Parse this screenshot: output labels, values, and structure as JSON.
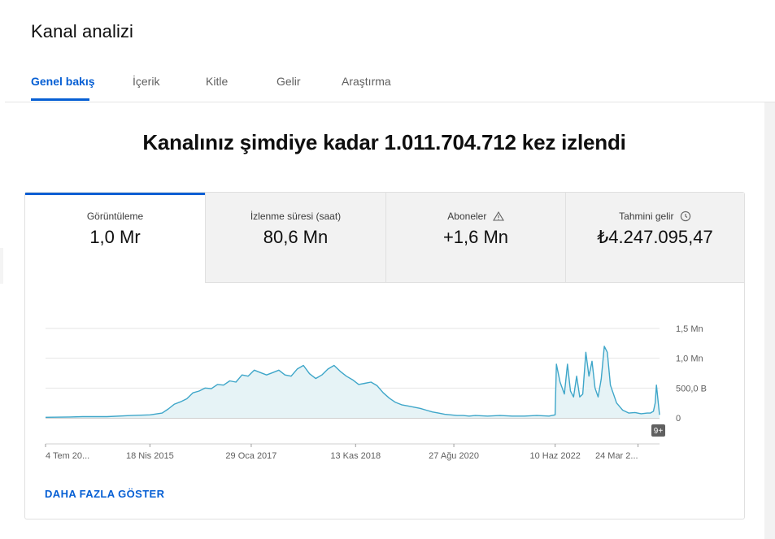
{
  "header": {
    "title": "Kanal analizi",
    "tabs": [
      {
        "label": "Genel bakış",
        "active": true
      },
      {
        "label": "İçerik",
        "active": false
      },
      {
        "label": "Kitle",
        "active": false
      },
      {
        "label": "Gelir",
        "active": false
      },
      {
        "label": "Araştırma",
        "active": false
      }
    ]
  },
  "headline": "Kanalınız şimdiye kadar 1.011.704.712 kez izlendi",
  "metrics": [
    {
      "label": "Görüntüleme",
      "value": "1,0 Mr",
      "selected": true,
      "icon": null
    },
    {
      "label": "İzlenme süresi (saat)",
      "value": "80,6 Mn",
      "selected": false,
      "icon": null
    },
    {
      "label": "Aboneler",
      "value": "+1,6 Mn",
      "selected": false,
      "icon": "warning-icon"
    },
    {
      "label": "Tahmini gelir",
      "value": "₺4.247.095,47",
      "selected": false,
      "icon": "clock-icon"
    }
  ],
  "chart_data": {
    "type": "area",
    "y_tick_labels": [
      "1,5 Mn",
      "1,0 Mn",
      "500,0 B",
      "0"
    ],
    "y_ticks": [
      1500000,
      1000000,
      500000,
      0
    ],
    "ylim": [
      0,
      1500000
    ],
    "x_tick_labels": [
      "4 Tem 20...",
      "18 Nis 2015",
      "29 Oca 2017",
      "13 Kas 2018",
      "27 Ağu 2020",
      "10 Haz 2022",
      "24 Mar 2..."
    ],
    "x_label_positions": [
      0.0,
      0.17,
      0.335,
      0.505,
      0.665,
      0.83,
      0.965
    ],
    "series": [
      {
        "x": [
          0,
          0.04,
          0.06,
          0.1,
          0.14,
          0.17,
          0.19,
          0.2,
          0.21,
          0.22,
          0.23,
          0.24,
          0.25,
          0.26,
          0.27,
          0.28,
          0.29,
          0.3,
          0.31,
          0.32,
          0.33,
          0.34,
          0.35,
          0.36,
          0.37,
          0.38,
          0.39,
          0.4,
          0.41,
          0.42,
          0.43,
          0.44,
          0.45,
          0.46,
          0.47,
          0.48,
          0.49,
          0.5,
          0.51,
          0.52,
          0.53,
          0.54,
          0.55,
          0.56,
          0.57,
          0.58,
          0.59,
          0.6,
          0.61,
          0.62,
          0.63,
          0.64,
          0.65,
          0.66,
          0.67,
          0.68,
          0.69,
          0.7,
          0.72,
          0.74,
          0.76,
          0.78,
          0.8,
          0.82,
          0.83,
          0.832,
          0.838,
          0.845,
          0.85,
          0.855,
          0.86,
          0.865,
          0.87,
          0.875,
          0.88,
          0.885,
          0.89,
          0.895,
          0.9,
          0.905,
          0.91,
          0.915,
          0.92,
          0.925,
          0.93,
          0.94,
          0.95,
          0.96,
          0.97,
          0.98,
          0.985,
          0.99,
          0.993,
          0.995,
          1.0
        ],
        "y": [
          10000,
          15000,
          20000,
          20000,
          40000,
          50000,
          80000,
          150000,
          230000,
          270000,
          320000,
          420000,
          450000,
          500000,
          490000,
          560000,
          550000,
          620000,
          600000,
          720000,
          700000,
          800000,
          760000,
          720000,
          760000,
          800000,
          720000,
          700000,
          820000,
          880000,
          740000,
          660000,
          720000,
          820000,
          880000,
          780000,
          700000,
          640000,
          560000,
          580000,
          600000,
          540000,
          420000,
          330000,
          260000,
          220000,
          200000,
          180000,
          160000,
          130000,
          100000,
          80000,
          60000,
          50000,
          40000,
          40000,
          30000,
          40000,
          30000,
          40000,
          30000,
          30000,
          40000,
          30000,
          50000,
          900000,
          600000,
          400000,
          900000,
          450000,
          350000,
          700000,
          350000,
          400000,
          1100000,
          700000,
          950000,
          500000,
          350000,
          650000,
          1200000,
          1100000,
          550000,
          400000,
          250000,
          130000,
          80000,
          90000,
          70000,
          80000,
          80000,
          110000,
          250000,
          550000,
          50000
        ]
      }
    ],
    "grid": true,
    "more_badge": "9+"
  },
  "footer": {
    "more_label": "DAHA FAZLA GÖSTER"
  },
  "colors": {
    "accent": "#065fd4",
    "line": "#3ea6c9",
    "fill": "#e6f3f6"
  }
}
